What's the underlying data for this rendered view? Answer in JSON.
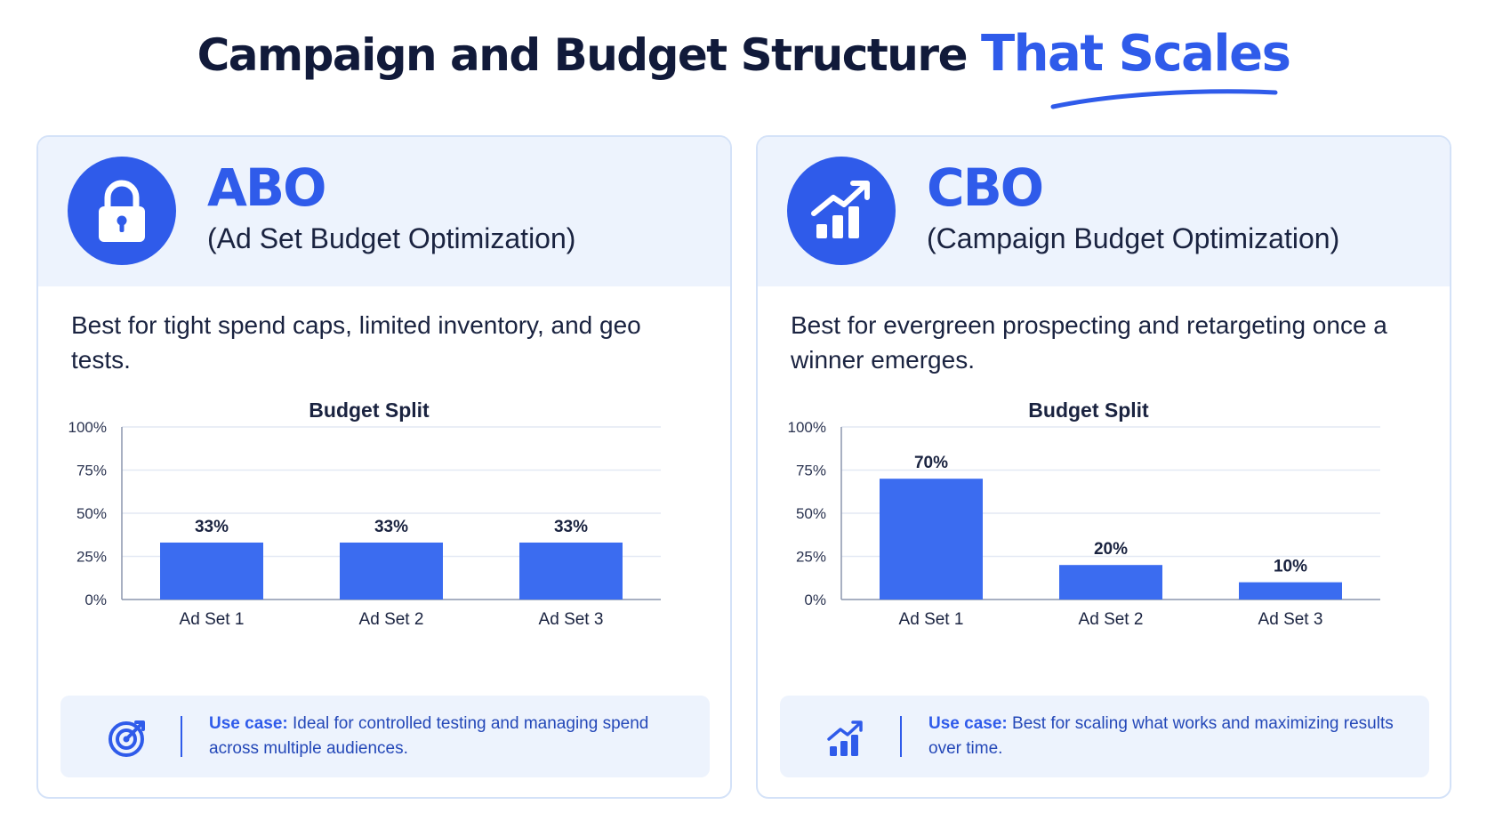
{
  "title": {
    "main": "Campaign and Budget Structure",
    "accent": "That Scales"
  },
  "colors": {
    "accent": "#2f5bea",
    "bar": "#3b6cf0",
    "panel": "#edf3fd",
    "dark": "#111a3a"
  },
  "cards": [
    {
      "code": "ABO",
      "full_name": "(Ad Set Budget Optimization)",
      "icon": "lock-icon",
      "description": "Best for tight spend caps, limited inventory, and geo tests.",
      "use_case": {
        "label": "Use case:",
        "text": "Ideal for controlled testing and managing spend across multiple audiences.",
        "icon": "target-icon"
      }
    },
    {
      "code": "CBO",
      "full_name": "(Campaign Budget Optimization)",
      "icon": "growth-chart-icon",
      "description": "Best for evergreen prospecting and retargeting once a winner emerges.",
      "use_case": {
        "label": "Use case:",
        "text": "Best for scaling what works and maximizing results over time.",
        "icon": "bar-growth-icon"
      }
    }
  ],
  "chart_data": [
    {
      "type": "bar",
      "title": "Budget Split",
      "categories": [
        "Ad Set 1",
        "Ad Set 2",
        "Ad Set 3"
      ],
      "values": [
        33,
        33,
        33
      ],
      "value_labels": [
        "33%",
        "33%",
        "33%"
      ],
      "ylim": [
        0,
        100
      ],
      "yticks": [
        0,
        25,
        50,
        75,
        100
      ],
      "ytick_labels": [
        "0%",
        "25%",
        "50%",
        "75%",
        "100%"
      ],
      "grid": true
    },
    {
      "type": "bar",
      "title": "Budget Split",
      "categories": [
        "Ad Set 1",
        "Ad Set 2",
        "Ad Set 3"
      ],
      "values": [
        70,
        20,
        10
      ],
      "value_labels": [
        "70%",
        "20%",
        "10%"
      ],
      "ylim": [
        0,
        100
      ],
      "yticks": [
        0,
        25,
        50,
        75,
        100
      ],
      "ytick_labels": [
        "0%",
        "25%",
        "50%",
        "75%",
        "100%"
      ],
      "grid": true
    }
  ]
}
